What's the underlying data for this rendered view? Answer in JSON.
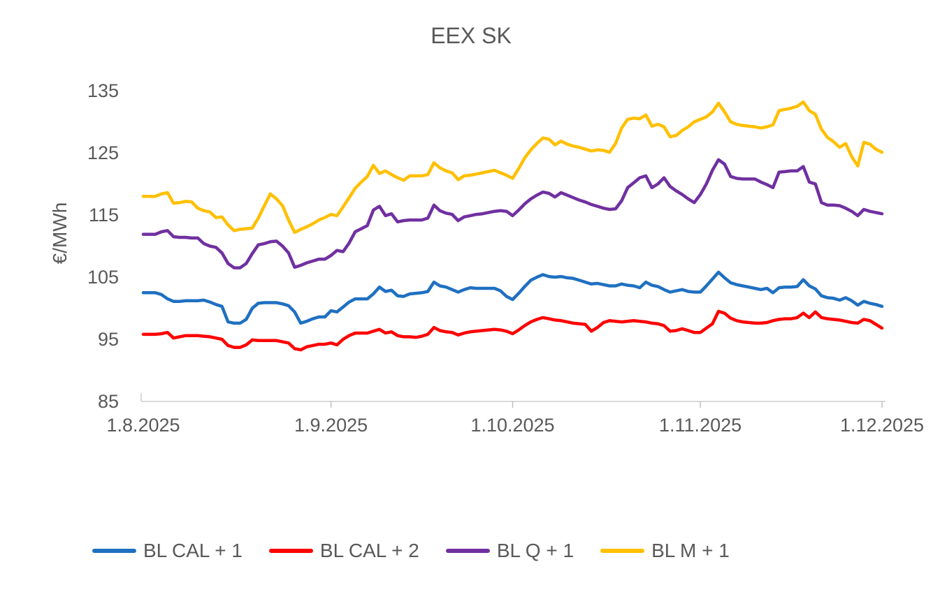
{
  "title": "EEX SK",
  "y_axis": {
    "title": "€/MWh",
    "ticks": [
      "135",
      "125",
      "115",
      "105",
      "95",
      "85"
    ]
  },
  "x_axis": {
    "ticks": [
      "1.8.2025",
      "1.9.2025",
      "1.10.2025",
      "1.11.2025",
      "1.12.2025"
    ]
  },
  "colors": {
    "text": "#595959",
    "axis_line": "#D9D9D9",
    "tick_mark": "#BFBFBF",
    "background": "#FFFFFF"
  },
  "chart_data": {
    "type": "line",
    "title": "EEX SK",
    "xlabel": "",
    "ylabel": "€/MWh",
    "ylim": [
      85,
      135
    ],
    "y_tick_step": 10,
    "grid": false,
    "legend_position": "bottom",
    "x_unit": "daily points from 1.8.2025 to 1.12.2025",
    "x_tick_labels": [
      "1.8.2025",
      "1.9.2025",
      "1.10.2025",
      "1.11.2025",
      "1.12.2025"
    ],
    "x_tick_day_indices": [
      0,
      31,
      61,
      92,
      122
    ],
    "line_width": 4.5,
    "series": [
      {
        "name": "BL CAL + 1",
        "color": "#1F70C1",
        "values": [
          102.5,
          102.5,
          102.5,
          102.2,
          101.5,
          101.1,
          101.1,
          101.2,
          101.2,
          101.2,
          101.3,
          101.0,
          100.6,
          100.3,
          97.8,
          97.6,
          97.6,
          98.2,
          100.0,
          100.8,
          100.9,
          100.9,
          100.9,
          100.7,
          100.4,
          99.4,
          97.6,
          97.9,
          98.3,
          98.6,
          98.6,
          99.6,
          99.4,
          100.2,
          101.0,
          101.5,
          101.5,
          101.5,
          102.3,
          103.4,
          102.7,
          102.9,
          102.0,
          101.9,
          102.3,
          102.4,
          102.5,
          102.7,
          104.2,
          103.6,
          103.4,
          103.0,
          102.6,
          103.0,
          103.3,
          103.2,
          103.2,
          103.2,
          103.2,
          102.8,
          101.9,
          101.4,
          102.4,
          103.5,
          104.5,
          105.0,
          105.4,
          105.1,
          105.0,
          105.1,
          104.9,
          104.8,
          104.5,
          104.2,
          103.9,
          104.0,
          103.8,
          103.6,
          103.6,
          103.9,
          103.7,
          103.6,
          103.3,
          104.2,
          103.7,
          103.5,
          103.0,
          102.6,
          102.8,
          103.0,
          102.7,
          102.6,
          102.6,
          103.6,
          104.7,
          105.8,
          104.9,
          104.1,
          103.8,
          103.6,
          103.4,
          103.2,
          103.0,
          103.2,
          102.5,
          103.3,
          103.4,
          103.4,
          103.5,
          104.6,
          103.6,
          103.1,
          102.0,
          101.7,
          101.6,
          101.3,
          101.7,
          101.2,
          100.5,
          101.1,
          100.8,
          100.6,
          100.3
        ]
      },
      {
        "name": "BL CAL + 2",
        "color": "#FE0000",
        "values": [
          95.8,
          95.8,
          95.8,
          95.9,
          96.1,
          95.2,
          95.4,
          95.6,
          95.6,
          95.6,
          95.5,
          95.4,
          95.2,
          95.0,
          94.0,
          93.7,
          93.7,
          94.1,
          94.9,
          94.8,
          94.8,
          94.8,
          94.8,
          94.6,
          94.4,
          93.5,
          93.3,
          93.8,
          94.0,
          94.2,
          94.2,
          94.4,
          94.1,
          95.0,
          95.6,
          96.0,
          96.0,
          96.0,
          96.3,
          96.6,
          96.0,
          96.2,
          95.6,
          95.4,
          95.4,
          95.3,
          95.5,
          95.8,
          96.9,
          96.4,
          96.2,
          96.1,
          95.7,
          96.0,
          96.2,
          96.3,
          96.4,
          96.5,
          96.6,
          96.5,
          96.3,
          95.9,
          96.5,
          97.2,
          97.8,
          98.2,
          98.5,
          98.3,
          98.1,
          98.0,
          97.8,
          97.6,
          97.5,
          97.4,
          96.3,
          96.9,
          97.7,
          98.0,
          97.9,
          97.8,
          97.9,
          98.0,
          97.9,
          97.8,
          97.6,
          97.5,
          97.2,
          96.3,
          96.4,
          96.7,
          96.4,
          96.1,
          96.1,
          96.8,
          97.5,
          99.5,
          99.2,
          98.4,
          98.0,
          97.8,
          97.7,
          97.6,
          97.6,
          97.7,
          98.0,
          98.2,
          98.3,
          98.3,
          98.5,
          99.2,
          98.5,
          99.4,
          98.5,
          98.3,
          98.2,
          98.1,
          97.9,
          97.7,
          97.6,
          98.2,
          98.0,
          97.4,
          96.8
        ]
      },
      {
        "name": "BL Q + 1",
        "color": "#7030A0",
        "values": [
          111.9,
          111.9,
          111.9,
          112.3,
          112.5,
          111.5,
          111.4,
          111.4,
          111.3,
          111.3,
          110.4,
          110.0,
          109.8,
          108.9,
          107.2,
          106.5,
          106.5,
          107.2,
          108.8,
          110.2,
          110.4,
          110.7,
          110.8,
          110.0,
          108.9,
          106.6,
          106.9,
          107.3,
          107.6,
          107.9,
          107.9,
          108.5,
          109.3,
          109.1,
          110.5,
          112.3,
          112.8,
          113.3,
          115.8,
          116.4,
          114.9,
          115.2,
          113.9,
          114.1,
          114.2,
          114.2,
          114.2,
          114.5,
          116.6,
          115.7,
          115.3,
          115.1,
          114.1,
          114.7,
          114.9,
          115.1,
          115.2,
          115.4,
          115.6,
          115.7,
          115.6,
          114.9,
          115.8,
          116.8,
          117.6,
          118.2,
          118.7,
          118.5,
          117.9,
          118.6,
          118.2,
          117.8,
          117.4,
          117.1,
          116.7,
          116.4,
          116.1,
          115.9,
          116.0,
          117.3,
          119.4,
          120.2,
          121.0,
          121.3,
          119.4,
          120.0,
          121.0,
          119.6,
          118.9,
          118.3,
          117.6,
          117.0,
          118.3,
          120.0,
          122.2,
          123.9,
          123.2,
          121.2,
          120.9,
          120.8,
          120.8,
          120.8,
          120.3,
          119.9,
          119.4,
          121.9,
          122.0,
          122.1,
          122.1,
          122.8,
          120.3,
          120.0,
          117.0,
          116.6,
          116.6,
          116.5,
          116.1,
          115.6,
          114.9,
          115.9,
          115.6,
          115.4,
          115.2
        ]
      },
      {
        "name": "BL M + 1",
        "color": "#FFC000",
        "values": [
          118.0,
          118.0,
          118.0,
          118.4,
          118.6,
          116.9,
          117.0,
          117.2,
          117.1,
          116.1,
          115.7,
          115.5,
          114.6,
          114.7,
          113.4,
          112.5,
          112.7,
          112.8,
          112.9,
          114.5,
          116.5,
          118.4,
          117.6,
          116.5,
          114.2,
          112.2,
          112.7,
          113.1,
          113.6,
          114.2,
          114.6,
          115.1,
          114.9,
          116.3,
          117.8,
          119.3,
          120.3,
          121.2,
          123.0,
          121.7,
          122.1,
          121.5,
          121.0,
          120.6,
          121.3,
          121.3,
          121.3,
          121.5,
          123.4,
          122.6,
          122.1,
          121.8,
          120.7,
          121.3,
          121.4,
          121.6,
          121.8,
          122.0,
          122.2,
          121.8,
          121.4,
          120.9,
          122.5,
          124.2,
          125.5,
          126.5,
          127.4,
          127.2,
          126.3,
          126.9,
          126.4,
          126.1,
          125.9,
          125.6,
          125.3,
          125.5,
          125.4,
          125.1,
          126.5,
          129.0,
          130.4,
          130.6,
          130.5,
          131.1,
          129.3,
          129.6,
          129.2,
          127.6,
          127.8,
          128.6,
          129.2,
          130.0,
          130.4,
          130.8,
          131.6,
          133.0,
          131.6,
          130.0,
          129.6,
          129.4,
          129.3,
          129.2,
          129.0,
          129.2,
          129.5,
          131.8,
          132.0,
          132.2,
          132.5,
          133.2,
          131.8,
          131.2,
          128.8,
          127.5,
          126.8,
          125.9,
          126.5,
          124.4,
          122.9,
          126.7,
          126.4,
          125.6,
          125.1
        ]
      }
    ]
  }
}
